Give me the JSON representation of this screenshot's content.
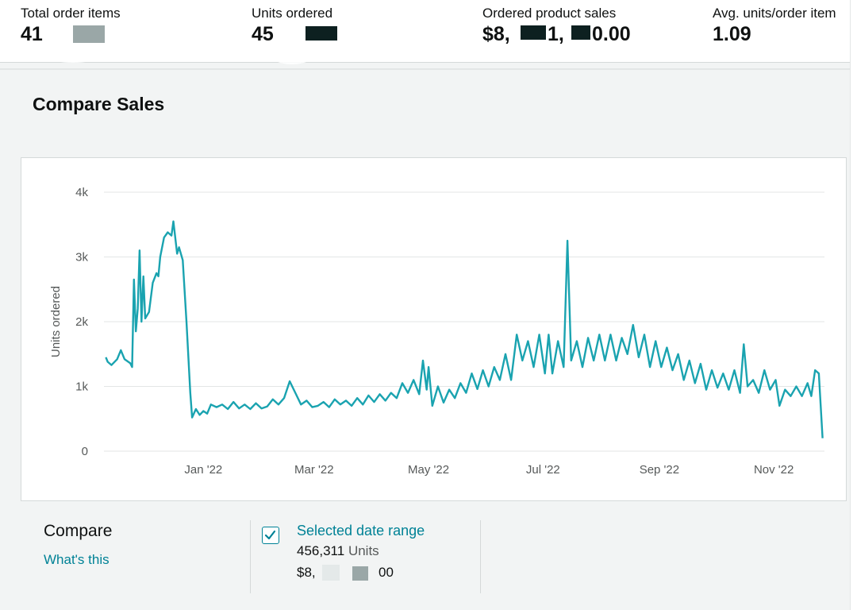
{
  "metrics": [
    {
      "label": "Total order items",
      "value": "41"
    },
    {
      "label": "Units ordered",
      "value": "45"
    },
    {
      "label": "Ordered product sales",
      "value_parts": [
        "$8,",
        "1,",
        "0.00"
      ]
    },
    {
      "label": "Avg. units/order item",
      "value": "1.09"
    }
  ],
  "section": {
    "title": "Compare Sales"
  },
  "colors": {
    "accent": "#1aa3b0",
    "link": "#008296"
  },
  "chart_data": {
    "type": "line",
    "xlabel": "",
    "ylabel": "Units ordered",
    "ylim": [
      0,
      4000
    ],
    "yticks": [
      {
        "label": "0",
        "value": 0
      },
      {
        "label": "1k",
        "value": 1000
      },
      {
        "label": "2k",
        "value": 2000
      },
      {
        "label": "3k",
        "value": 3000
      },
      {
        "label": "4k",
        "value": 4000
      }
    ],
    "xlim": [
      "2021-11-09",
      "2022-11-28"
    ],
    "xticks": [
      {
        "label": "Jan '22",
        "date": "2022-01-01"
      },
      {
        "label": "Mar '22",
        "date": "2022-03-01"
      },
      {
        "label": "May '22",
        "date": "2022-05-01"
      },
      {
        "label": "Jul '22",
        "date": "2022-07-01"
      },
      {
        "label": "Sep '22",
        "date": "2022-09-01"
      },
      {
        "label": "Nov '22",
        "date": "2022-11-01"
      }
    ],
    "grid": true,
    "series": [
      {
        "name": "Selected date range",
        "points": [
          [
            "2021-11-10",
            1450
          ],
          [
            "2021-11-11",
            1380
          ],
          [
            "2021-11-13",
            1330
          ],
          [
            "2021-11-16",
            1420
          ],
          [
            "2021-11-18",
            1560
          ],
          [
            "2021-11-20",
            1420
          ],
          [
            "2021-11-23",
            1360
          ],
          [
            "2021-11-24",
            1300
          ],
          [
            "2021-11-25",
            2650
          ],
          [
            "2021-11-26",
            1850
          ],
          [
            "2021-11-27",
            2200
          ],
          [
            "2021-11-28",
            3100
          ],
          [
            "2021-11-29",
            2000
          ],
          [
            "2021-11-30",
            2700
          ],
          [
            "2021-12-01",
            2050
          ],
          [
            "2021-12-03",
            2150
          ],
          [
            "2021-12-05",
            2600
          ],
          [
            "2021-12-07",
            2750
          ],
          [
            "2021-12-08",
            2700
          ],
          [
            "2021-12-09",
            3000
          ],
          [
            "2021-12-11",
            3300
          ],
          [
            "2021-12-13",
            3380
          ],
          [
            "2021-12-15",
            3330
          ],
          [
            "2021-12-16",
            3550
          ],
          [
            "2021-12-18",
            3050
          ],
          [
            "2021-12-19",
            3150
          ],
          [
            "2021-12-21",
            2950
          ],
          [
            "2021-12-23",
            2000
          ],
          [
            "2021-12-25",
            900
          ],
          [
            "2021-12-26",
            520
          ],
          [
            "2021-12-28",
            650
          ],
          [
            "2021-12-30",
            560
          ],
          [
            "2022-01-01",
            620
          ],
          [
            "2022-01-03",
            580
          ],
          [
            "2022-01-05",
            720
          ],
          [
            "2022-01-08",
            680
          ],
          [
            "2022-01-11",
            720
          ],
          [
            "2022-01-14",
            650
          ],
          [
            "2022-01-17",
            760
          ],
          [
            "2022-01-20",
            660
          ],
          [
            "2022-01-23",
            720
          ],
          [
            "2022-01-26",
            650
          ],
          [
            "2022-01-29",
            740
          ],
          [
            "2022-02-01",
            660
          ],
          [
            "2022-02-04",
            690
          ],
          [
            "2022-02-07",
            800
          ],
          [
            "2022-02-10",
            720
          ],
          [
            "2022-02-13",
            820
          ],
          [
            "2022-02-16",
            1080
          ],
          [
            "2022-02-19",
            900
          ],
          [
            "2022-02-22",
            720
          ],
          [
            "2022-02-25",
            780
          ],
          [
            "2022-02-28",
            680
          ],
          [
            "2022-03-03",
            700
          ],
          [
            "2022-03-06",
            760
          ],
          [
            "2022-03-09",
            680
          ],
          [
            "2022-03-12",
            800
          ],
          [
            "2022-03-15",
            720
          ],
          [
            "2022-03-18",
            780
          ],
          [
            "2022-03-21",
            700
          ],
          [
            "2022-03-24",
            820
          ],
          [
            "2022-03-27",
            720
          ],
          [
            "2022-03-30",
            860
          ],
          [
            "2022-04-02",
            760
          ],
          [
            "2022-04-05",
            880
          ],
          [
            "2022-04-08",
            780
          ],
          [
            "2022-04-11",
            900
          ],
          [
            "2022-04-14",
            820
          ],
          [
            "2022-04-17",
            1050
          ],
          [
            "2022-04-20",
            900
          ],
          [
            "2022-04-23",
            1100
          ],
          [
            "2022-04-26",
            880
          ],
          [
            "2022-04-28",
            1400
          ],
          [
            "2022-04-30",
            950
          ],
          [
            "2022-05-01",
            1300
          ],
          [
            "2022-05-03",
            700
          ],
          [
            "2022-05-06",
            1000
          ],
          [
            "2022-05-09",
            750
          ],
          [
            "2022-05-12",
            950
          ],
          [
            "2022-05-15",
            820
          ],
          [
            "2022-05-18",
            1050
          ],
          [
            "2022-05-21",
            900
          ],
          [
            "2022-05-24",
            1200
          ],
          [
            "2022-05-27",
            960
          ],
          [
            "2022-05-30",
            1250
          ],
          [
            "2022-06-02",
            1000
          ],
          [
            "2022-06-05",
            1300
          ],
          [
            "2022-06-08",
            1100
          ],
          [
            "2022-06-11",
            1500
          ],
          [
            "2022-06-14",
            1100
          ],
          [
            "2022-06-17",
            1800
          ],
          [
            "2022-06-20",
            1400
          ],
          [
            "2022-06-23",
            1700
          ],
          [
            "2022-06-26",
            1300
          ],
          [
            "2022-06-29",
            1800
          ],
          [
            "2022-07-02",
            1200
          ],
          [
            "2022-07-04",
            1800
          ],
          [
            "2022-07-06",
            1200
          ],
          [
            "2022-07-09",
            1700
          ],
          [
            "2022-07-12",
            1300
          ],
          [
            "2022-07-14",
            3250
          ],
          [
            "2022-07-16",
            1400
          ],
          [
            "2022-07-19",
            1700
          ],
          [
            "2022-07-22",
            1300
          ],
          [
            "2022-07-25",
            1750
          ],
          [
            "2022-07-28",
            1400
          ],
          [
            "2022-07-31",
            1800
          ],
          [
            "2022-08-03",
            1400
          ],
          [
            "2022-08-06",
            1800
          ],
          [
            "2022-08-09",
            1400
          ],
          [
            "2022-08-12",
            1750
          ],
          [
            "2022-08-15",
            1500
          ],
          [
            "2022-08-18",
            1950
          ],
          [
            "2022-08-21",
            1450
          ],
          [
            "2022-08-24",
            1800
          ],
          [
            "2022-08-27",
            1300
          ],
          [
            "2022-08-30",
            1700
          ],
          [
            "2022-09-02",
            1300
          ],
          [
            "2022-09-05",
            1600
          ],
          [
            "2022-09-08",
            1250
          ],
          [
            "2022-09-11",
            1500
          ],
          [
            "2022-09-14",
            1100
          ],
          [
            "2022-09-17",
            1400
          ],
          [
            "2022-09-20",
            1050
          ],
          [
            "2022-09-23",
            1350
          ],
          [
            "2022-09-26",
            950
          ],
          [
            "2022-09-29",
            1250
          ],
          [
            "2022-10-02",
            980
          ],
          [
            "2022-10-05",
            1200
          ],
          [
            "2022-10-08",
            950
          ],
          [
            "2022-10-11",
            1250
          ],
          [
            "2022-10-14",
            900
          ],
          [
            "2022-10-16",
            1650
          ],
          [
            "2022-10-18",
            1000
          ],
          [
            "2022-10-21",
            1100
          ],
          [
            "2022-10-24",
            900
          ],
          [
            "2022-10-27",
            1250
          ],
          [
            "2022-10-30",
            950
          ],
          [
            "2022-11-02",
            1100
          ],
          [
            "2022-11-04",
            700
          ],
          [
            "2022-11-07",
            950
          ],
          [
            "2022-11-10",
            850
          ],
          [
            "2022-11-13",
            1000
          ],
          [
            "2022-11-16",
            850
          ],
          [
            "2022-11-19",
            1050
          ],
          [
            "2022-11-21",
            850
          ],
          [
            "2022-11-23",
            1250
          ],
          [
            "2022-11-25",
            1200
          ],
          [
            "2022-11-27",
            200
          ]
        ]
      }
    ]
  },
  "compare": {
    "title": "Compare",
    "whats_this": "What's this",
    "legend": {
      "label": "Selected date range",
      "units_value": "456,311",
      "units_word": "Units",
      "sales_prefix": "$8,",
      "sales_suffix": "00"
    }
  }
}
